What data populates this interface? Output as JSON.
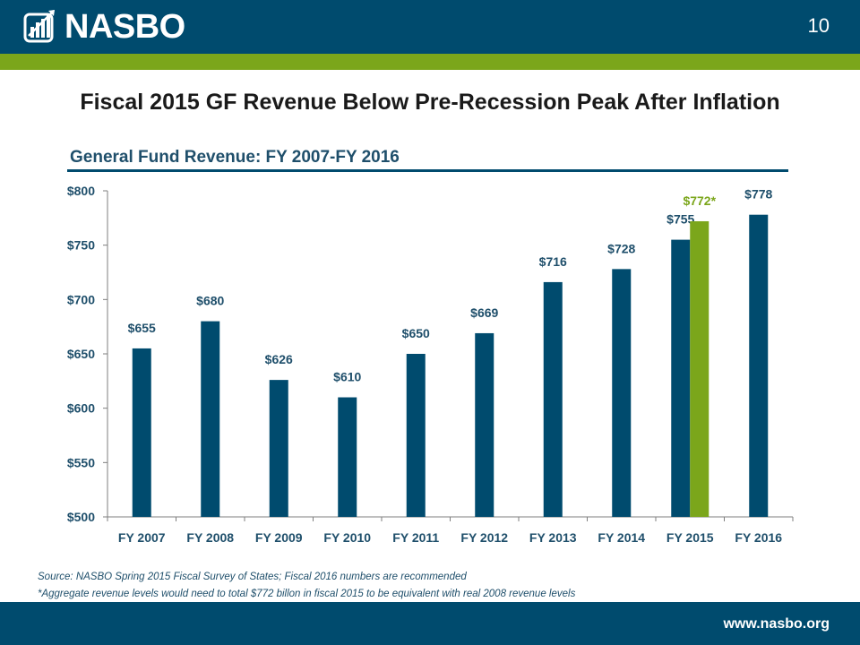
{
  "header": {
    "logo_text": "NASBO",
    "page_number": "10"
  },
  "slide": {
    "title": "Fiscal 2015 GF Revenue Below Pre-Recession Peak After Inflation"
  },
  "chart_data": {
    "type": "bar",
    "title": "General Fund Revenue: FY 2007-FY 2016",
    "categories": [
      "FY 2007",
      "FY 2008",
      "FY 2009",
      "FY 2010",
      "FY 2011",
      "FY 2012",
      "FY 2013",
      "FY 2014",
      "FY 2015",
      "FY 2016"
    ],
    "series": [
      {
        "values": [
          655,
          680,
          626,
          610,
          650,
          669,
          716,
          728,
          755,
          778
        ],
        "labels": [
          "$655",
          "$680",
          "$626",
          "$610",
          "$650",
          "$669",
          "$716",
          "$728",
          "$755",
          "$778"
        ],
        "color": "#004b6e"
      },
      {
        "values": [
          null,
          null,
          null,
          null,
          null,
          null,
          null,
          null,
          772,
          null
        ],
        "labels": [
          null,
          null,
          null,
          null,
          null,
          null,
          null,
          null,
          "$772*",
          null
        ],
        "color": "#7ba61b"
      }
    ],
    "ylim": [
      500,
      800
    ],
    "yticks": [
      500,
      550,
      600,
      650,
      700,
      750,
      800
    ],
    "ytick_labels": [
      "$500",
      "$550",
      "$600",
      "$650",
      "$700",
      "$750",
      "$800"
    ],
    "xlabel": "",
    "ylabel": "",
    "grid": false,
    "legend": "none"
  },
  "footer": {
    "source": "Source: NASBO Spring 2015 Fiscal Survey of States; Fiscal 2016 numbers are recommended",
    "note": "*Aggregate revenue levels would need to total $772 billon in fiscal 2015 to be equivalent with real 2008 revenue levels",
    "url": "www.nasbo.org"
  }
}
